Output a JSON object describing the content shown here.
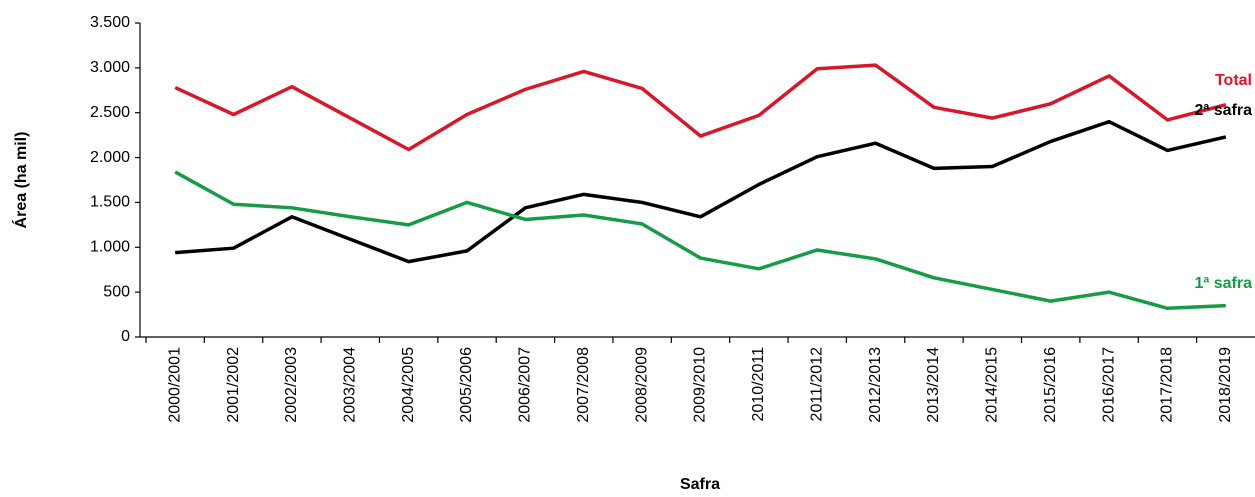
{
  "chart_data": {
    "type": "line",
    "x_label": "Safra",
    "y_label": "Área (ha mil)",
    "categories": [
      "2000/2001",
      "2001/2002",
      "2002/2003",
      "2003/2004",
      "2004/2005",
      "2005/2006",
      "2006/2007",
      "2007/2008",
      "2008/2009",
      "2009/2010",
      "2010/2011",
      "2011/2012",
      "2012/2013",
      "2013/2014",
      "2014/2015",
      "2015/2016",
      "2016/2017",
      "2017/2018",
      "2018/2019"
    ],
    "series": [
      {
        "name": "Total",
        "color": "#d7182a",
        "values": [
          2780,
          2480,
          2790,
          2440,
          2090,
          2480,
          2760,
          2960,
          2770,
          2240,
          2470,
          2990,
          3030,
          2560,
          2440,
          2600,
          2910,
          2420,
          2590
        ]
      },
      {
        "name": "2ª safra",
        "color": "#000000",
        "values": [
          940,
          990,
          1340,
          1090,
          840,
          960,
          1440,
          1590,
          1500,
          1340,
          1700,
          2010,
          2160,
          1880,
          1900,
          2180,
          2400,
          2080,
          2230
        ]
      },
      {
        "name": "1ª safra",
        "color": "#169b48",
        "values": [
          1840,
          1480,
          1440,
          1340,
          1250,
          1500,
          1310,
          1360,
          1260,
          880,
          760,
          970,
          870,
          660,
          530,
          400,
          500,
          320,
          350
        ]
      }
    ],
    "ylim": [
      0,
      3500
    ],
    "yticks": [
      0,
      500,
      {
        "value": 1000,
        "label": "1.000"
      },
      {
        "value": 1500,
        "label": "1.500"
      },
      {
        "value": 2000,
        "label": "2.000"
      },
      {
        "value": 2500,
        "label": "2.500"
      },
      {
        "value": 3000,
        "label": "3.000"
      },
      {
        "value": 3500,
        "label": "3.500"
      }
    ],
    "grid": false
  }
}
